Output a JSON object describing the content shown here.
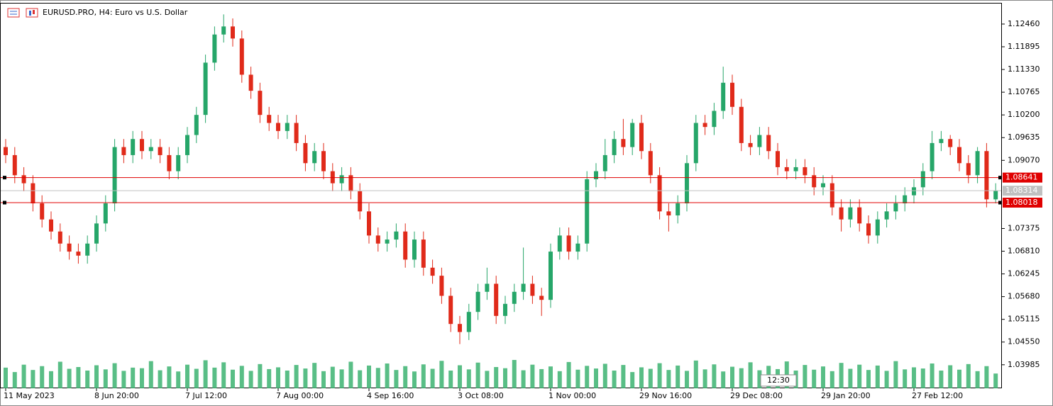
{
  "chart_data": {
    "type": "candlestick",
    "title": "EURUSD.PRO, H4:  Euro vs U.S. Dollar",
    "timer": "12:30",
    "categories": [
      "11 May 2023",
      null,
      null,
      null,
      null,
      null,
      null,
      null,
      null,
      null,
      "8 Jun 20:00",
      null,
      null,
      null,
      null,
      null,
      null,
      null,
      null,
      null,
      "7 Jul 12:00",
      null,
      null,
      null,
      null,
      null,
      null,
      null,
      null,
      null,
      "7 Aug 00:00",
      null,
      null,
      null,
      null,
      null,
      null,
      null,
      null,
      null,
      "4 Sep 16:00",
      null,
      null,
      null,
      null,
      null,
      null,
      null,
      null,
      null,
      "3 Oct 08:00",
      null,
      null,
      null,
      null,
      null,
      null,
      null,
      null,
      null,
      "1 Nov 00:00",
      null,
      null,
      null,
      null,
      null,
      null,
      null,
      null,
      null,
      "29 Nov 16:00",
      null,
      null,
      null,
      null,
      null,
      null,
      null,
      null,
      null,
      "29 Dec 08:00",
      null,
      null,
      null,
      null,
      null,
      null,
      null,
      null,
      null,
      "29 Jan 20:00",
      null,
      null,
      null,
      null,
      null,
      null,
      null,
      null,
      null,
      "27 Feb 12:00",
      null,
      null,
      null,
      null,
      null,
      null,
      null,
      null,
      null
    ],
    "open": [
      1.094,
      1.092,
      1.087,
      1.085,
      1.08,
      1.076,
      1.073,
      1.07,
      1.068,
      1.067,
      1.07,
      1.075,
      1.08,
      1.094,
      1.092,
      1.096,
      1.093,
      1.094,
      1.092,
      1.088,
      1.092,
      1.097,
      1.102,
      1.115,
      1.122,
      1.124,
      1.121,
      1.112,
      1.108,
      1.102,
      1.1,
      1.098,
      1.1,
      1.095,
      1.09,
      1.093,
      1.088,
      1.085,
      1.087,
      1.083,
      1.078,
      1.072,
      1.07,
      1.071,
      1.073,
      1.066,
      1.071,
      1.064,
      1.062,
      1.057,
      1.05,
      1.048,
      1.053,
      1.058,
      1.06,
      1.052,
      1.055,
      1.058,
      1.06,
      1.057,
      1.056,
      1.068,
      1.072,
      1.068,
      1.07,
      1.086,
      1.088,
      1.092,
      1.096,
      1.094,
      1.1,
      1.093,
      1.087,
      1.078,
      1.077,
      1.08,
      1.09,
      1.1,
      1.099,
      1.103,
      1.11,
      1.104,
      1.095,
      1.094,
      1.097,
      1.093,
      1.089,
      1.088,
      1.089,
      1.087,
      1.084,
      1.085,
      1.079,
      1.076,
      1.079,
      1.075,
      1.072,
      1.076,
      1.078,
      1.08,
      1.082,
      1.084,
      1.088,
      1.095,
      1.096,
      1.094,
      1.09,
      1.087,
      1.093,
      1.081
    ],
    "high": [
      1.096,
      1.094,
      1.089,
      1.087,
      1.082,
      1.078,
      1.075,
      1.072,
      1.07,
      1.072,
      1.077,
      1.082,
      1.096,
      1.096,
      1.098,
      1.098,
      1.096,
      1.096,
      1.094,
      1.094,
      1.099,
      1.104,
      1.117,
      1.124,
      1.127,
      1.126,
      1.123,
      1.114,
      1.11,
      1.104,
      1.102,
      1.102,
      1.102,
      1.097,
      1.095,
      1.095,
      1.09,
      1.089,
      1.089,
      1.085,
      1.08,
      1.074,
      1.073,
      1.075,
      1.075,
      1.073,
      1.073,
      1.066,
      1.064,
      1.059,
      1.052,
      1.055,
      1.06,
      1.064,
      1.062,
      1.057,
      1.06,
      1.069,
      1.062,
      1.059,
      1.07,
      1.074,
      1.074,
      1.072,
      1.088,
      1.09,
      1.096,
      1.098,
      1.101,
      1.101,
      1.102,
      1.095,
      1.089,
      1.08,
      1.082,
      1.092,
      1.102,
      1.102,
      1.105,
      1.114,
      1.112,
      1.106,
      1.097,
      1.099,
      1.099,
      1.095,
      1.091,
      1.091,
      1.091,
      1.089,
      1.087,
      1.087,
      1.081,
      1.081,
      1.081,
      1.077,
      1.078,
      1.08,
      1.082,
      1.084,
      1.086,
      1.09,
      1.098,
      1.098,
      1.097,
      1.096,
      1.092,
      1.094,
      1.095,
      1.085
    ],
    "low": [
      1.09,
      1.085,
      1.083,
      1.078,
      1.074,
      1.071,
      1.068,
      1.066,
      1.065,
      1.065,
      1.068,
      1.073,
      1.078,
      1.09,
      1.09,
      1.091,
      1.091,
      1.09,
      1.086,
      1.086,
      1.09,
      1.095,
      1.1,
      1.113,
      1.12,
      1.119,
      1.11,
      1.106,
      1.1,
      1.098,
      1.096,
      1.096,
      1.093,
      1.088,
      1.088,
      1.086,
      1.083,
      1.083,
      1.081,
      1.076,
      1.07,
      1.068,
      1.068,
      1.069,
      1.064,
      1.064,
      1.062,
      1.06,
      1.055,
      1.048,
      1.045,
      1.046,
      1.051,
      1.056,
      1.05,
      1.05,
      1.053,
      1.056,
      1.055,
      1.052,
      1.054,
      1.066,
      1.066,
      1.066,
      1.068,
      1.084,
      1.086,
      1.09,
      1.092,
      1.092,
      1.091,
      1.085,
      1.076,
      1.073,
      1.075,
      1.078,
      1.088,
      1.097,
      1.097,
      1.101,
      1.102,
      1.093,
      1.092,
      1.092,
      1.091,
      1.087,
      1.086,
      1.086,
      1.085,
      1.082,
      1.082,
      1.077,
      1.073,
      1.074,
      1.073,
      1.07,
      1.07,
      1.074,
      1.076,
      1.078,
      1.08,
      1.082,
      1.086,
      1.093,
      1.092,
      1.088,
      1.085,
      1.085,
      1.079,
      1.08
    ],
    "close": [
      1.092,
      1.087,
      1.085,
      1.08,
      1.076,
      1.073,
      1.07,
      1.068,
      1.067,
      1.07,
      1.075,
      1.08,
      1.094,
      1.092,
      1.096,
      1.093,
      1.094,
      1.092,
      1.088,
      1.092,
      1.097,
      1.102,
      1.115,
      1.122,
      1.124,
      1.121,
      1.112,
      1.108,
      1.102,
      1.1,
      1.098,
      1.1,
      1.095,
      1.09,
      1.093,
      1.088,
      1.085,
      1.087,
      1.083,
      1.078,
      1.072,
      1.07,
      1.071,
      1.073,
      1.066,
      1.071,
      1.064,
      1.062,
      1.057,
      1.05,
      1.048,
      1.053,
      1.058,
      1.06,
      1.052,
      1.055,
      1.058,
      1.06,
      1.057,
      1.056,
      1.068,
      1.072,
      1.068,
      1.07,
      1.086,
      1.088,
      1.092,
      1.096,
      1.094,
      1.1,
      1.093,
      1.087,
      1.078,
      1.077,
      1.08,
      1.09,
      1.1,
      1.099,
      1.103,
      1.11,
      1.104,
      1.095,
      1.094,
      1.097,
      1.093,
      1.089,
      1.088,
      1.089,
      1.087,
      1.084,
      1.085,
      1.079,
      1.076,
      1.079,
      1.075,
      1.072,
      1.076,
      1.078,
      1.08,
      1.082,
      1.084,
      1.088,
      1.095,
      1.096,
      1.094,
      1.09,
      1.087,
      1.093,
      1.081,
      1.0831
    ],
    "volume": [
      70,
      55,
      80,
      62,
      75,
      58,
      90,
      66,
      72,
      60,
      78,
      64,
      85,
      59,
      70,
      68,
      92,
      61,
      74,
      57,
      80,
      66,
      95,
      70,
      88,
      63,
      76,
      59,
      82,
      65,
      71,
      60,
      79,
      67,
      86,
      58,
      73,
      64,
      90,
      61,
      77,
      69,
      84,
      62,
      75,
      57,
      81,
      66,
      93,
      60,
      78,
      64,
      87,
      59,
      72,
      68,
      96,
      61,
      80,
      65,
      74,
      58,
      89,
      63,
      76,
      67,
      83,
      60,
      79,
      55,
      71,
      66,
      85,
      62,
      77,
      59,
      94,
      64,
      81,
      57,
      73,
      68,
      88,
      61,
      76,
      65,
      91,
      60,
      79,
      63,
      74,
      58,
      86,
      66,
      80,
      62,
      77,
      59,
      92,
      64,
      71,
      67,
      84,
      60,
      78,
      63,
      82,
      58,
      75,
      50
    ],
    "up_color": "#26a669",
    "down_color": "#e02a1a",
    "volume_color": "#3cb371",
    "ylim": [
      1.034,
      1.1297
    ],
    "yticks": [
      {
        "value": 1.1246,
        "label": "1.12460"
      },
      {
        "value": 1.11895,
        "label": "1.11895"
      },
      {
        "value": 1.1133,
        "label": "1.11330"
      },
      {
        "value": 1.10765,
        "label": "1.10765"
      },
      {
        "value": 1.102,
        "label": "1.10200"
      },
      {
        "value": 1.09635,
        "label": "1.09635"
      },
      {
        "value": 1.0907,
        "label": "1.09070"
      },
      {
        "value": 1.07375,
        "label": "1.07375"
      },
      {
        "value": 1.0681,
        "label": "1.06810"
      },
      {
        "value": 1.06245,
        "label": "1.06245"
      },
      {
        "value": 1.0568,
        "label": "1.05680"
      },
      {
        "value": 1.05115,
        "label": "1.05115"
      },
      {
        "value": 1.0455,
        "label": "1.04550"
      },
      {
        "value": 1.03985,
        "label": "1.03985"
      }
    ],
    "levels": [
      {
        "value": 1.08641,
        "label": "1.08641",
        "color": "#e00000"
      },
      {
        "value": 1.08314,
        "label": "1.08314",
        "color": "#c0c0c0"
      },
      {
        "value": 1.08018,
        "label": "1.08018",
        "color": "#e00000"
      }
    ]
  }
}
